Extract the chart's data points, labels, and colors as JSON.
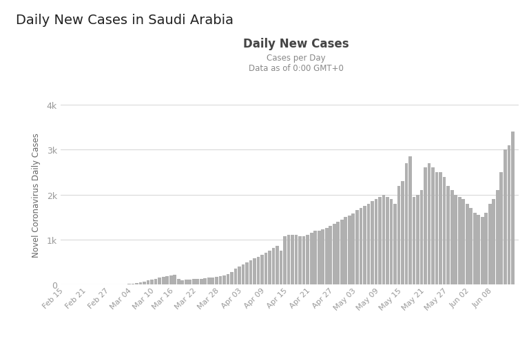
{
  "title_main": "Daily New Cases in Saudi Arabia",
  "chart_title": "Daily New Cases",
  "chart_subtitle1": "Cases per Day",
  "chart_subtitle2": "Data as of 0:00 GMT+0",
  "ylabel": "Novel Coronavirus Daily Cases",
  "background_color": "#ffffff",
  "bar_color": "#b0b0b0",
  "grid_color": "#d8d8d8",
  "tick_label_color": "#999999",
  "axis_label_color": "#666666",
  "ylim": [
    0,
    4000
  ],
  "ytick_labels": [
    "0",
    "1k",
    "2k",
    "3k",
    "4k"
  ],
  "dates": [
    "Feb 15",
    "Feb 21",
    "Feb 27",
    "Mar 04",
    "Mar 10",
    "Mar 16",
    "Mar 22",
    "Mar 28",
    "Apr 03",
    "Apr 09",
    "Apr 15",
    "Apr 21",
    "Apr 27",
    "May 03",
    "May 09",
    "May 15",
    "May 21",
    "May 27",
    "Jun 02",
    "Jun 08"
  ],
  "daily_cases": [
    0,
    0,
    0,
    0,
    0,
    0,
    0,
    0,
    0,
    1,
    1,
    1,
    2,
    3,
    5,
    7,
    9,
    12,
    20,
    33,
    50,
    70,
    90,
    110,
    130,
    150,
    170,
    190,
    200,
    210,
    120,
    100,
    110,
    115,
    120,
    125,
    130,
    140,
    150,
    160,
    170,
    185,
    200,
    230,
    280,
    350,
    400,
    450,
    500,
    540,
    580,
    620,
    660,
    700,
    760,
    810,
    860,
    750,
    1070,
    1100,
    1100,
    1100,
    1070,
    1070,
    1100,
    1150,
    1200,
    1200,
    1230,
    1260,
    1300,
    1350,
    1400,
    1450,
    1500,
    1540,
    1580,
    1650,
    1700,
    1750,
    1800,
    1850,
    1900,
    1950,
    2000,
    1950,
    1900,
    1800,
    2200,
    2300,
    2700,
    2850,
    1950,
    2000,
    2100,
    2600,
    2700,
    2600,
    2500,
    2500,
    2400,
    2200,
    2100,
    2000,
    1950,
    1900,
    1800,
    1700,
    1600,
    1550,
    1500,
    1600,
    1800,
    1900,
    2100,
    2500,
    3000,
    3100,
    3400
  ],
  "legend_circle_color": "#888888",
  "legend_line_color": "#bbbbbb"
}
